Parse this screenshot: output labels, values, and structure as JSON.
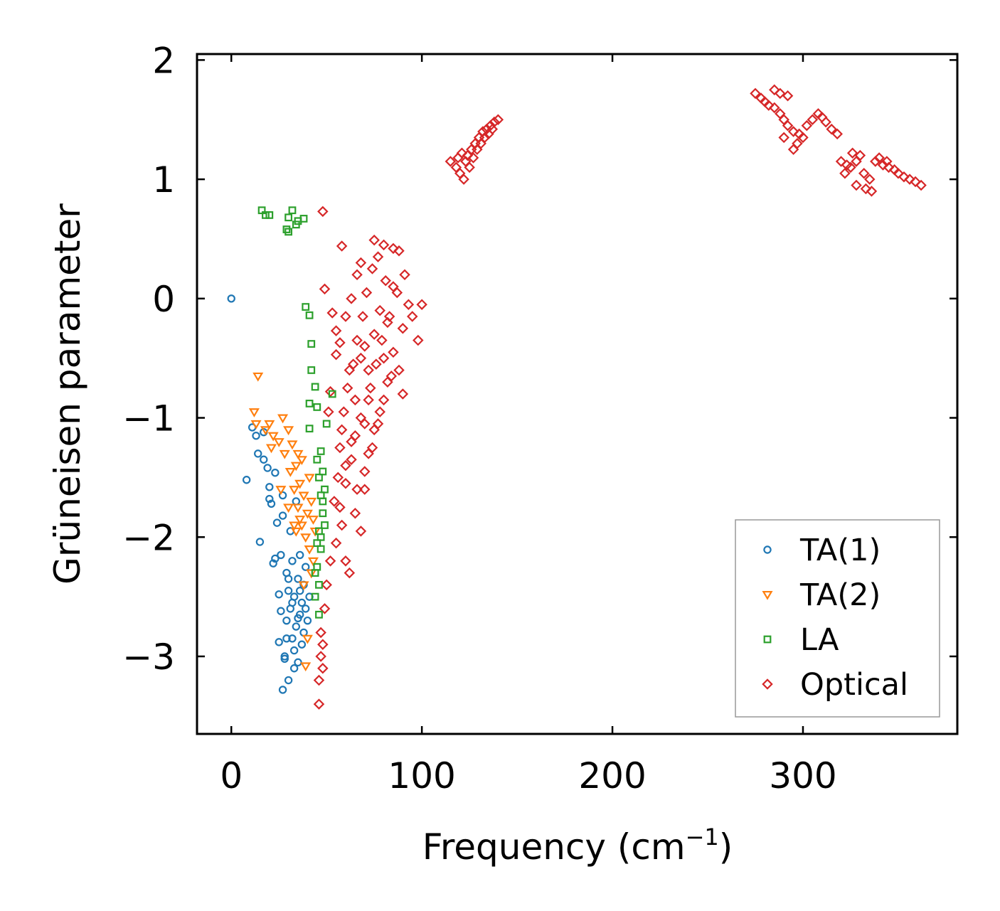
{
  "chart_data": {
    "type": "scatter",
    "xlabel": "Frequency (cm",
    "xlabel_superscript": "−1",
    "xlabel_suffix": ")",
    "ylabel": "Grüneisen parameter",
    "xlim": [
      -18,
      381
    ],
    "ylim": [
      -3.65,
      2.05
    ],
    "xticks": [
      0,
      100,
      200,
      300
    ],
    "yticks": [
      2,
      1,
      0,
      -1,
      -2,
      -3
    ],
    "xtick_labels": [
      "0",
      "100",
      "200",
      "300"
    ],
    "ytick_labels": [
      "2",
      "1",
      "0",
      "−1",
      "−2",
      "−3"
    ],
    "legend_position": "lower-right",
    "series": [
      {
        "name": "TA(1)",
        "marker": "circle",
        "color": "#1f77b4",
        "points": [
          [
            0,
            0
          ],
          [
            8,
            -1.52
          ],
          [
            11,
            -1.08
          ],
          [
            13,
            -1.15
          ],
          [
            14,
            -1.3
          ],
          [
            15,
            -2.04
          ],
          [
            17,
            -1.12
          ],
          [
            17,
            -1.35
          ],
          [
            19,
            -1.42
          ],
          [
            20,
            -1.58
          ],
          [
            20,
            -1.68
          ],
          [
            21,
            -1.72
          ],
          [
            22,
            -2.22
          ],
          [
            23,
            -2.18
          ],
          [
            23,
            -1.46
          ],
          [
            24,
            -1.88
          ],
          [
            25,
            -2.48
          ],
          [
            25,
            -2.88
          ],
          [
            26,
            -2.15
          ],
          [
            27,
            -1.82
          ],
          [
            27,
            -1.65
          ],
          [
            28,
            -3.02
          ],
          [
            28,
            -3.0
          ],
          [
            29,
            -2.7
          ],
          [
            29,
            -2.3
          ],
          [
            30,
            -2.45
          ],
          [
            30,
            -3.2
          ],
          [
            31,
            -2.6
          ],
          [
            31,
            -1.95
          ],
          [
            32,
            -2.85
          ],
          [
            32,
            -2.2
          ],
          [
            33,
            -3.1
          ],
          [
            33,
            -2.5
          ],
          [
            34,
            -1.7
          ],
          [
            34,
            -2.75
          ],
          [
            35,
            -2.35
          ],
          [
            35,
            -3.05
          ],
          [
            36,
            -2.65
          ],
          [
            36,
            -2.15
          ],
          [
            37,
            -2.9
          ],
          [
            37,
            -2.55
          ],
          [
            38,
            -2.4
          ],
          [
            38,
            -2.8
          ],
          [
            39,
            -2.6
          ],
          [
            40,
            -2.7
          ],
          [
            41,
            -2.5
          ],
          [
            27,
            -3.28
          ],
          [
            30,
            -2.35
          ],
          [
            33,
            -2.95
          ],
          [
            36,
            -2.45
          ],
          [
            39,
            -2.25
          ],
          [
            26,
            -2.62
          ],
          [
            29,
            -2.85
          ],
          [
            32,
            -2.55
          ],
          [
            35,
            -2.68
          ]
        ]
      },
      {
        "name": "TA(2)",
        "marker": "triangle-down",
        "color": "#ff7f0e",
        "points": [
          [
            14,
            -0.65
          ],
          [
            12,
            -0.95
          ],
          [
            13,
            -1.05
          ],
          [
            18,
            -1.1
          ],
          [
            20,
            -1.05
          ],
          [
            21,
            -1.25
          ],
          [
            22,
            -1.15
          ],
          [
            25,
            -1.2
          ],
          [
            27,
            -1.0
          ],
          [
            28,
            -1.3
          ],
          [
            30,
            -1.1
          ],
          [
            31,
            -1.45
          ],
          [
            32,
            -1.22
          ],
          [
            33,
            -1.6
          ],
          [
            34,
            -1.4
          ],
          [
            35,
            -1.75
          ],
          [
            36,
            -1.55
          ],
          [
            37,
            -1.9
          ],
          [
            38,
            -1.65
          ],
          [
            39,
            -2.0
          ],
          [
            40,
            -1.8
          ],
          [
            41,
            -2.1
          ],
          [
            42,
            -1.7
          ],
          [
            43,
            -2.2
          ],
          [
            44,
            -1.95
          ],
          [
            36,
            -1.85
          ],
          [
            38,
            -2.4
          ],
          [
            40,
            -2.85
          ],
          [
            39,
            -3.08
          ],
          [
            35,
            -1.3
          ],
          [
            37,
            -1.35
          ],
          [
            41,
            -1.5
          ],
          [
            42,
            -2.3
          ],
          [
            43,
            -1.85
          ],
          [
            34,
            -1.95
          ],
          [
            26,
            -1.6
          ],
          [
            30,
            -1.75
          ],
          [
            33,
            -1.9
          ]
        ]
      },
      {
        "name": "LA",
        "marker": "square",
        "color": "#2ca02c",
        "points": [
          [
            16,
            0.74
          ],
          [
            18,
            0.7
          ],
          [
            20,
            0.7
          ],
          [
            29,
            0.58
          ],
          [
            30,
            0.56
          ],
          [
            30,
            0.68
          ],
          [
            32,
            0.74
          ],
          [
            34,
            0.62
          ],
          [
            35,
            0.65
          ],
          [
            38,
            0.67
          ],
          [
            39,
            -0.07
          ],
          [
            41,
            -0.14
          ],
          [
            42,
            -0.38
          ],
          [
            42,
            -0.6
          ],
          [
            44,
            -0.74
          ],
          [
            41,
            -0.88
          ],
          [
            45,
            -0.91
          ],
          [
            41,
            -1.09
          ],
          [
            47,
            -1.28
          ],
          [
            50,
            -1.05
          ],
          [
            53,
            -0.8
          ],
          [
            45,
            -1.35
          ],
          [
            46,
            -1.5
          ],
          [
            47,
            -1.65
          ],
          [
            48,
            -1.8
          ],
          [
            46,
            -1.95
          ],
          [
            47,
            -2.1
          ],
          [
            45,
            -2.25
          ],
          [
            46,
            -2.4
          ],
          [
            44,
            -2.5
          ],
          [
            48,
            -1.45
          ],
          [
            49,
            -1.6
          ],
          [
            47,
            -2.0
          ],
          [
            46,
            -2.65
          ],
          [
            48,
            -1.7
          ],
          [
            45,
            -2.05
          ],
          [
            49,
            -1.9
          ],
          [
            44,
            -2.3
          ]
        ]
      },
      {
        "name": "Optical",
        "marker": "diamond",
        "color": "#d62728",
        "points": [
          [
            48,
            0.73
          ],
          [
            49,
            0.08
          ],
          [
            58,
            0.44
          ],
          [
            75,
            0.49
          ],
          [
            80,
            0.45
          ],
          [
            85,
            0.42
          ],
          [
            88,
            0.4
          ],
          [
            53,
            -0.12
          ],
          [
            55,
            -0.47
          ],
          [
            52,
            -0.78
          ],
          [
            51,
            -0.95
          ],
          [
            55,
            -0.27
          ],
          [
            57,
            -0.37
          ],
          [
            60,
            -0.15
          ],
          [
            63,
            0.0
          ],
          [
            66,
            0.2
          ],
          [
            68,
            0.3
          ],
          [
            70,
            -0.4
          ],
          [
            72,
            -0.6
          ],
          [
            75,
            -0.3
          ],
          [
            78,
            -0.1
          ],
          [
            80,
            -0.5
          ],
          [
            82,
            -0.2
          ],
          [
            85,
            0.1
          ],
          [
            90,
            -0.25
          ],
          [
            93,
            -0.05
          ],
          [
            60,
            -1.4
          ],
          [
            63,
            -1.2
          ],
          [
            66,
            -1.6
          ],
          [
            68,
            -1.0
          ],
          [
            72,
            -0.85
          ],
          [
            75,
            -1.1
          ],
          [
            78,
            -0.95
          ],
          [
            82,
            -0.7
          ],
          [
            85,
            -0.45
          ],
          [
            88,
            -0.6
          ],
          [
            90,
            -0.8
          ],
          [
            62,
            -0.6
          ],
          [
            65,
            -0.85
          ],
          [
            68,
            -0.5
          ],
          [
            58,
            -1.1
          ],
          [
            56,
            -1.5
          ],
          [
            54,
            -1.7
          ],
          [
            58,
            -1.9
          ],
          [
            60,
            -2.2
          ],
          [
            62,
            -2.3
          ],
          [
            65,
            -1.8
          ],
          [
            68,
            -1.95
          ],
          [
            70,
            -1.6
          ],
          [
            72,
            -1.3
          ],
          [
            47,
            -2.8
          ],
          [
            47,
            -3.0
          ],
          [
            46,
            -3.2
          ],
          [
            46,
            -3.4
          ],
          [
            48,
            -2.9
          ],
          [
            48,
            -3.1
          ],
          [
            49,
            -2.6
          ],
          [
            50,
            -2.4
          ],
          [
            52,
            -2.2
          ],
          [
            55,
            -2.05
          ],
          [
            57,
            -1.75
          ],
          [
            60,
            -1.55
          ],
          [
            63,
            -1.35
          ],
          [
            65,
            -1.15
          ],
          [
            70,
            -1.05
          ],
          [
            73,
            -0.75
          ],
          [
            76,
            -0.55
          ],
          [
            79,
            -0.35
          ],
          [
            83,
            -0.15
          ],
          [
            87,
            0.05
          ],
          [
            91,
            0.2
          ],
          [
            95,
            -0.15
          ],
          [
            98,
            -0.35
          ],
          [
            100,
            -0.05
          ],
          [
            70,
            -1.45
          ],
          [
            74,
            -1.25
          ],
          [
            77,
            -1.05
          ],
          [
            80,
            -0.85
          ],
          [
            84,
            -0.65
          ],
          [
            57,
            -1.25
          ],
          [
            59,
            -0.95
          ],
          [
            61,
            -0.75
          ],
          [
            64,
            -0.55
          ],
          [
            66,
            -0.35
          ],
          [
            69,
            -0.15
          ],
          [
            71,
            0.05
          ],
          [
            74,
            0.25
          ],
          [
            77,
            0.35
          ],
          [
            81,
            0.15
          ],
          [
            115,
            1.15
          ],
          [
            118,
            1.1
          ],
          [
            120,
            1.05
          ],
          [
            122,
            1.0
          ],
          [
            124,
            1.2
          ],
          [
            126,
            1.25
          ],
          [
            128,
            1.3
          ],
          [
            130,
            1.35
          ],
          [
            132,
            1.4
          ],
          [
            134,
            1.42
          ],
          [
            136,
            1.45
          ],
          [
            138,
            1.48
          ],
          [
            140,
            1.5
          ],
          [
            119,
            1.18
          ],
          [
            121,
            1.22
          ],
          [
            123,
            1.15
          ],
          [
            125,
            1.1
          ],
          [
            127,
            1.18
          ],
          [
            129,
            1.25
          ],
          [
            131,
            1.3
          ],
          [
            133,
            1.35
          ],
          [
            135,
            1.38
          ],
          [
            137,
            1.42
          ],
          [
            275,
            1.72
          ],
          [
            278,
            1.68
          ],
          [
            280,
            1.65
          ],
          [
            282,
            1.62
          ],
          [
            285,
            1.6
          ],
          [
            288,
            1.55
          ],
          [
            290,
            1.5
          ],
          [
            292,
            1.45
          ],
          [
            295,
            1.4
          ],
          [
            298,
            1.38
          ],
          [
            300,
            1.35
          ],
          [
            302,
            1.45
          ],
          [
            305,
            1.5
          ],
          [
            308,
            1.55
          ],
          [
            310,
            1.52
          ],
          [
            312,
            1.48
          ],
          [
            315,
            1.42
          ],
          [
            318,
            1.38
          ],
          [
            295,
            1.25
          ],
          [
            297,
            1.3
          ],
          [
            290,
            1.35
          ],
          [
            285,
            1.75
          ],
          [
            288,
            1.72
          ],
          [
            292,
            1.7
          ],
          [
            320,
            1.15
          ],
          [
            323,
            1.12
          ],
          [
            325,
            1.1
          ],
          [
            328,
            1.15
          ],
          [
            330,
            1.2
          ],
          [
            332,
            1.05
          ],
          [
            335,
            1.0
          ],
          [
            338,
            1.15
          ],
          [
            340,
            1.18
          ],
          [
            342,
            1.12
          ],
          [
            345,
            1.1
          ],
          [
            348,
            1.08
          ],
          [
            350,
            1.05
          ],
          [
            353,
            1.02
          ],
          [
            356,
            1.0
          ],
          [
            359,
            0.98
          ],
          [
            362,
            0.95
          ],
          [
            328,
            0.95
          ],
          [
            333,
            0.92
          ],
          [
            336,
            0.9
          ],
          [
            326,
            1.22
          ],
          [
            322,
            1.05
          ],
          [
            344,
            1.15
          ]
        ]
      }
    ]
  }
}
